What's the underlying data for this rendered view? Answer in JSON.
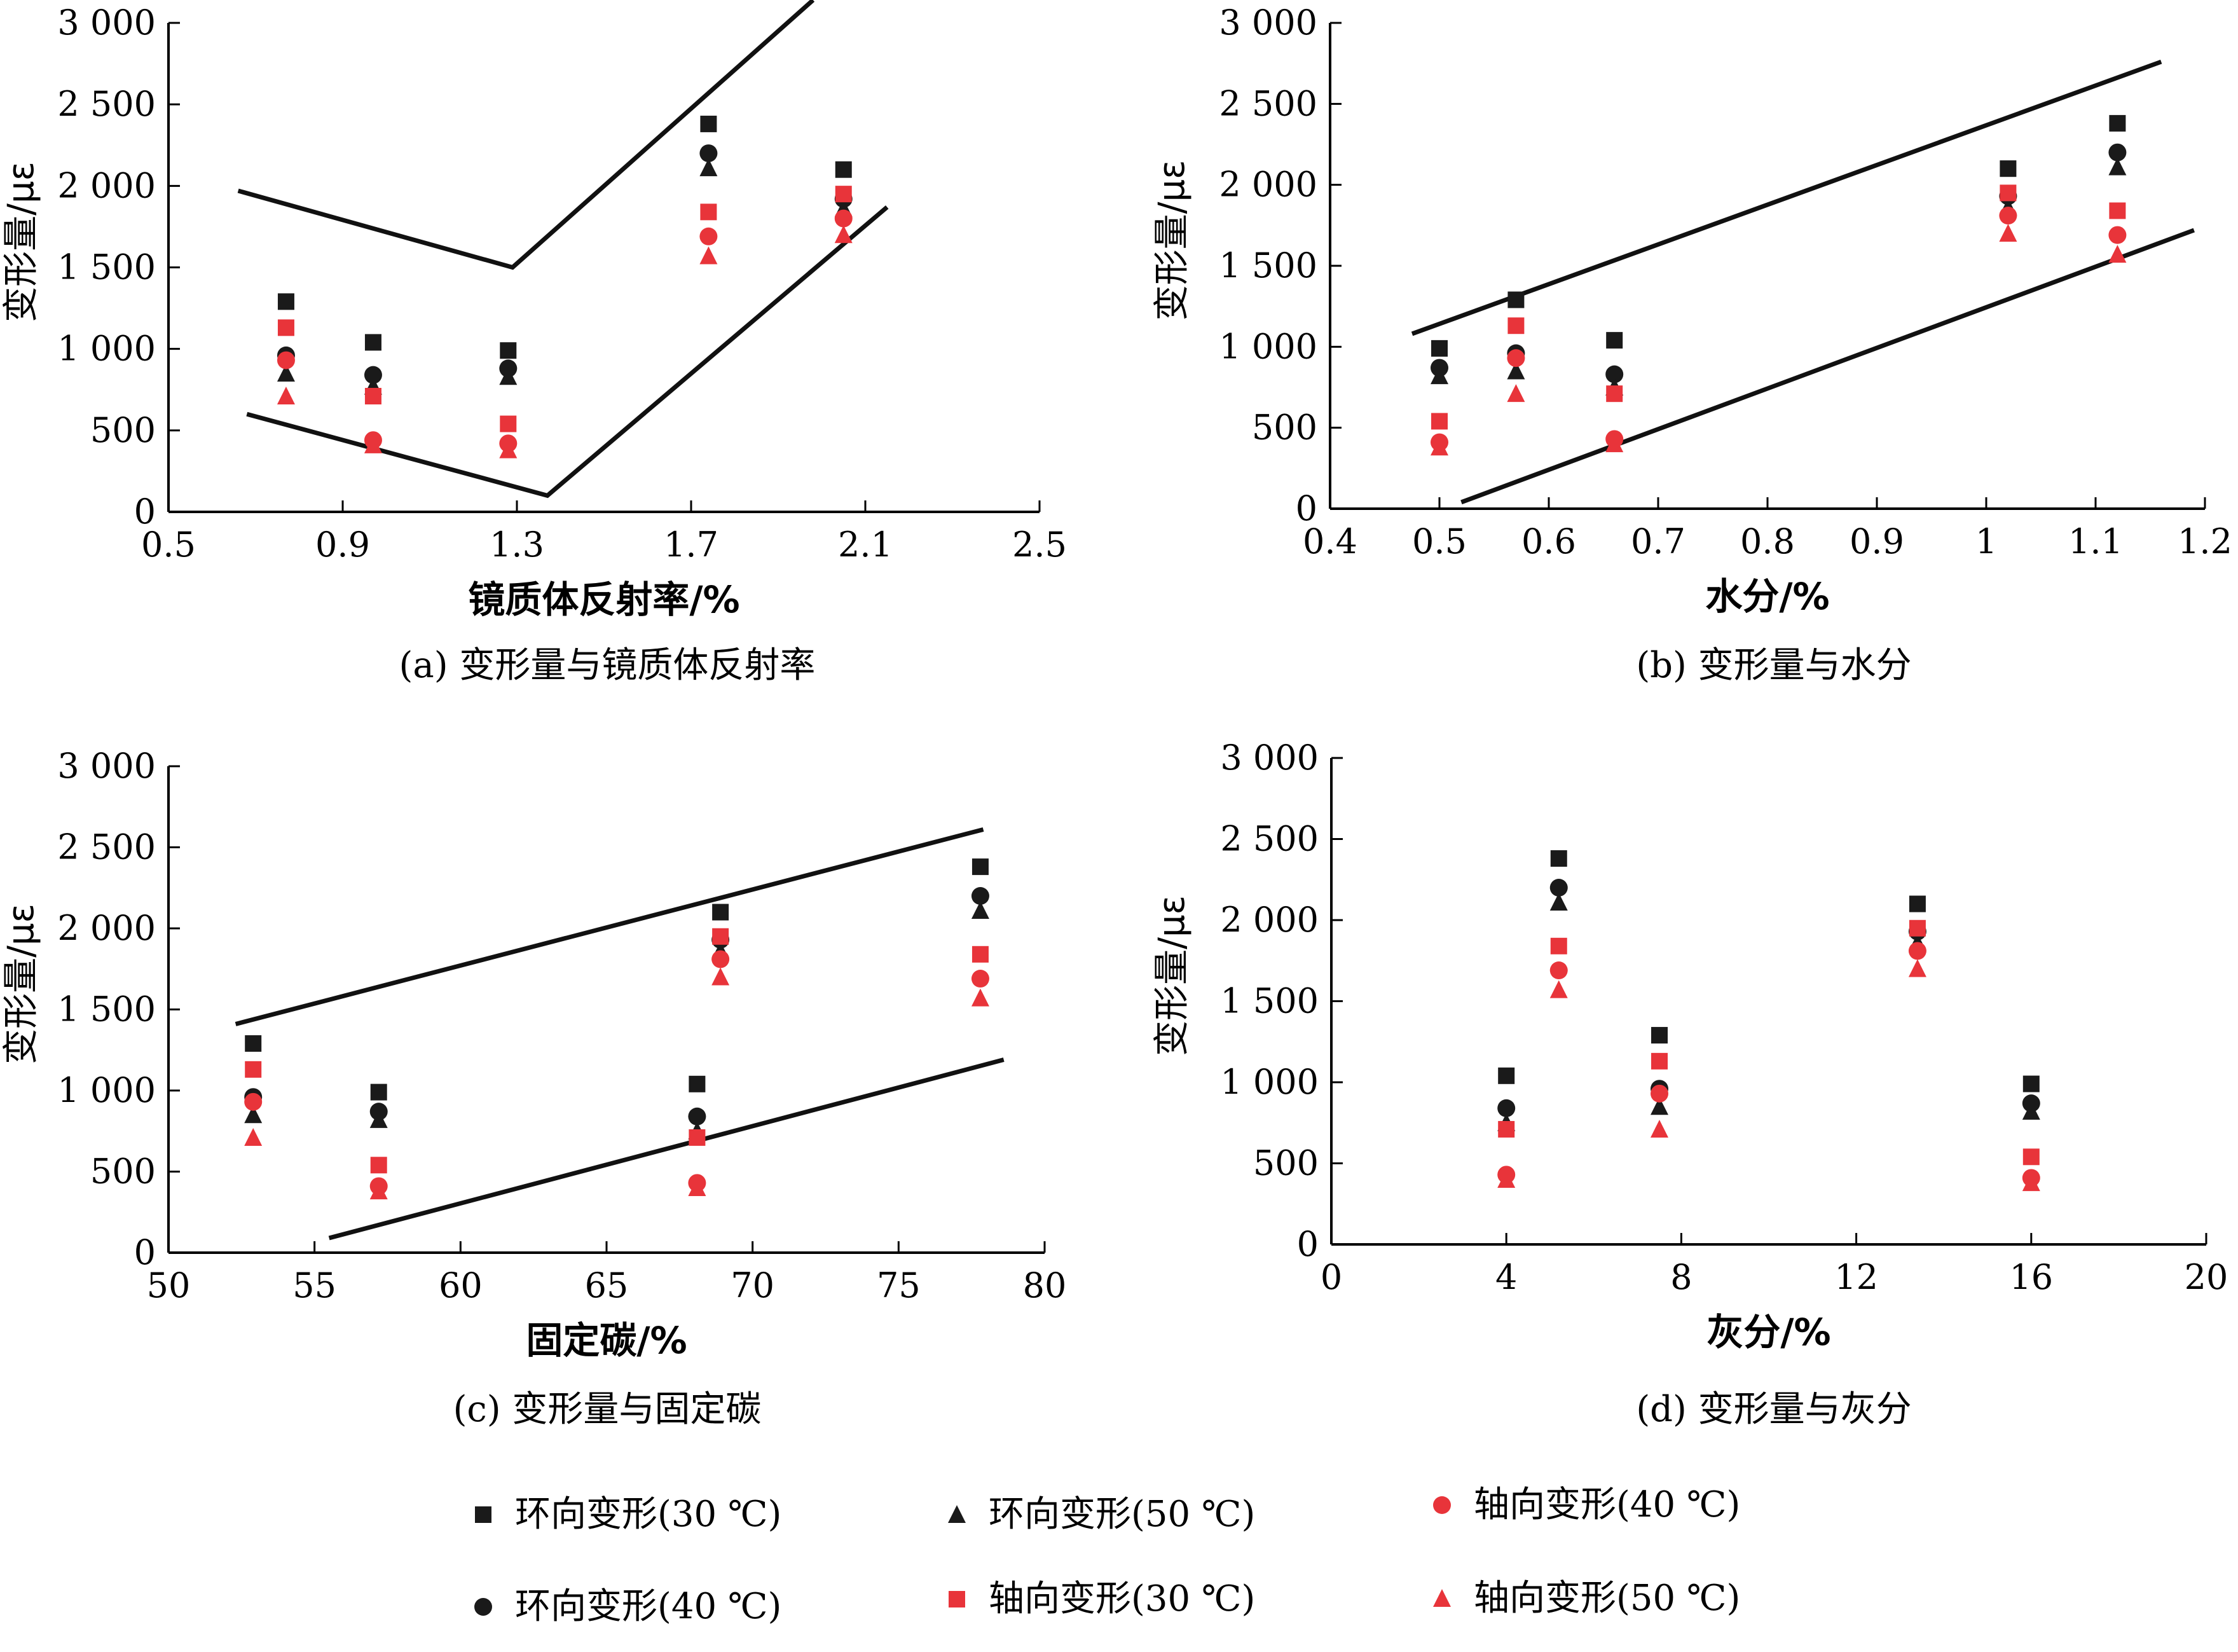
{
  "chart_data": [
    {
      "type": "scatter",
      "xlabel": "镜质体反射率/%",
      "ylabel": "变形量/με",
      "caption": "(a) 变形量与镜质体反射率",
      "xlim": [
        0.5,
        2.5
      ],
      "ylim": [
        0,
        3000
      ],
      "x_ticks": [
        "0.5",
        "0.9",
        "1.3",
        "1.7",
        "2.1",
        "2.5"
      ],
      "y_ticks": [
        "0",
        "500",
        "1 000",
        "1 500",
        "2 000",
        "2 500",
        "3 000"
      ],
      "series": [
        {
          "key": "h30",
          "points": [
            [
              0.77,
              1290
            ],
            [
              0.97,
              1040
            ],
            [
              1.28,
              990
            ],
            [
              1.74,
              2380
            ],
            [
              2.05,
              2100
            ]
          ]
        },
        {
          "key": "h40",
          "points": [
            [
              0.77,
              960
            ],
            [
              0.97,
              840
            ],
            [
              1.28,
              880
            ],
            [
              1.74,
              2200
            ],
            [
              2.05,
              1920
            ]
          ]
        },
        {
          "key": "h50",
          "points": [
            [
              0.77,
              850
            ],
            [
              0.97,
              770
            ],
            [
              1.28,
              830
            ],
            [
              1.74,
              2110
            ],
            [
              2.05,
              1860
            ]
          ]
        },
        {
          "key": "a30",
          "points": [
            [
              0.77,
              1130
            ],
            [
              0.97,
              710
            ],
            [
              1.28,
              540
            ],
            [
              1.74,
              1840
            ],
            [
              2.05,
              1950
            ]
          ]
        },
        {
          "key": "a40",
          "points": [
            [
              0.77,
              930
            ],
            [
              0.97,
              440
            ],
            [
              1.28,
              420
            ],
            [
              1.74,
              1690
            ],
            [
              2.05,
              1800
            ]
          ]
        },
        {
          "key": "a50",
          "points": [
            [
              0.77,
              710
            ],
            [
              0.97,
              410
            ],
            [
              1.28,
              380
            ],
            [
              1.74,
              1570
            ],
            [
              2.05,
              1700
            ]
          ]
        }
      ],
      "envelopes": [
        [
          [
            0.66,
            1970
          ],
          [
            1.29,
            1500
          ],
          [
            1.98,
            3140
          ]
        ],
        [
          [
            0.68,
            600
          ],
          [
            1.37,
            100
          ],
          [
            2.15,
            1870
          ]
        ]
      ]
    },
    {
      "type": "scatter",
      "xlabel": "水分/%",
      "ylabel": "变形量/με",
      "caption": "(b) 变形量与水分",
      "xlim": [
        0.4,
        1.2
      ],
      "ylim": [
        0,
        3000
      ],
      "x_ticks": [
        "0.4",
        "0.5",
        "0.6",
        "0.7",
        "0.8",
        "0.9",
        "1",
        "1.1",
        "1.2"
      ],
      "y_ticks": [
        "0",
        "500",
        "1 000",
        "1 500",
        "2 000",
        "2 500",
        "3 000"
      ],
      "series": [
        {
          "key": "h30",
          "points": [
            [
              0.5,
              990
            ],
            [
              0.57,
              1290
            ],
            [
              0.66,
              1040
            ],
            [
              1.02,
              2100
            ],
            [
              1.12,
              2380
            ]
          ]
        },
        {
          "key": "h40",
          "points": [
            [
              0.5,
              870
            ],
            [
              0.57,
              960
            ],
            [
              0.66,
              830
            ],
            [
              1.02,
              1930
            ],
            [
              1.12,
              2200
            ]
          ]
        },
        {
          "key": "h50",
          "points": [
            [
              0.5,
              820
            ],
            [
              0.57,
              850
            ],
            [
              0.66,
              750
            ],
            [
              1.02,
              1860
            ],
            [
              1.12,
              2110
            ]
          ]
        },
        {
          "key": "a30",
          "points": [
            [
              0.5,
              540
            ],
            [
              0.57,
              1130
            ],
            [
              0.66,
              710
            ],
            [
              1.02,
              1950
            ],
            [
              1.12,
              1840
            ]
          ]
        },
        {
          "key": "a40",
          "points": [
            [
              0.5,
              410
            ],
            [
              0.57,
              930
            ],
            [
              0.66,
              430
            ],
            [
              1.02,
              1810
            ],
            [
              1.12,
              1690
            ]
          ]
        },
        {
          "key": "a50",
          "points": [
            [
              0.5,
              380
            ],
            [
              0.57,
              710
            ],
            [
              0.66,
              400
            ],
            [
              1.02,
              1700
            ],
            [
              1.12,
              1570
            ]
          ]
        }
      ],
      "envelopes": [
        [
          [
            0.475,
            1080
          ],
          [
            1.16,
            2760
          ]
        ],
        [
          [
            0.52,
            40
          ],
          [
            1.19,
            1720
          ]
        ]
      ]
    },
    {
      "type": "scatter",
      "xlabel": "固定碳/%",
      "ylabel": "变形量/με",
      "caption": "(c) 变形量与固定碳",
      "xlim": [
        50,
        80
      ],
      "ylim": [
        0,
        3000
      ],
      "x_ticks": [
        "50",
        "55",
        "60",
        "65",
        "70",
        "75",
        "80"
      ],
      "y_ticks": [
        "0",
        "500",
        "1 000",
        "1 500",
        "2 000",
        "2 500",
        "3 000"
      ],
      "series": [
        {
          "key": "h30",
          "points": [
            [
              52.9,
              1290
            ],
            [
              57.2,
              990
            ],
            [
              68.1,
              1040
            ],
            [
              68.9,
              2100
            ],
            [
              77.8,
              2380
            ]
          ]
        },
        {
          "key": "h40",
          "points": [
            [
              52.9,
              960
            ],
            [
              57.2,
              870
            ],
            [
              68.1,
              840
            ],
            [
              68.9,
              1930
            ],
            [
              77.8,
              2200
            ]
          ]
        },
        {
          "key": "h50",
          "points": [
            [
              52.9,
              850
            ],
            [
              57.2,
              820
            ],
            [
              68.1,
              750
            ],
            [
              68.9,
              1860
            ],
            [
              77.8,
              2110
            ]
          ]
        },
        {
          "key": "a30",
          "points": [
            [
              52.9,
              1130
            ],
            [
              57.2,
              540
            ],
            [
              68.1,
              710
            ],
            [
              68.9,
              1950
            ],
            [
              77.8,
              1840
            ]
          ]
        },
        {
          "key": "a40",
          "points": [
            [
              52.9,
              930
            ],
            [
              57.2,
              410
            ],
            [
              68.1,
              430
            ],
            [
              68.9,
              1810
            ],
            [
              77.8,
              1690
            ]
          ]
        },
        {
          "key": "a50",
          "points": [
            [
              52.9,
              710
            ],
            [
              57.2,
              380
            ],
            [
              68.1,
              400
            ],
            [
              68.9,
              1700
            ],
            [
              77.8,
              1570
            ]
          ]
        }
      ],
      "envelopes": [
        [
          [
            52.3,
            1410
          ],
          [
            77.9,
            2610
          ]
        ],
        [
          [
            55.5,
            90
          ],
          [
            78.6,
            1190
          ]
        ]
      ]
    },
    {
      "type": "scatter",
      "xlabel": "灰分/%",
      "ylabel": "变形量/με",
      "caption": "(d) 变形量与灰分",
      "xlim": [
        0,
        20
      ],
      "ylim": [
        0,
        3000
      ],
      "x_ticks": [
        "0",
        "4",
        "8",
        "12",
        "16",
        "20"
      ],
      "y_ticks": [
        "0",
        "500",
        "1 000",
        "1 500",
        "2 000",
        "2 500",
        "3 000"
      ],
      "series": [
        {
          "key": "h30",
          "points": [
            [
              4.0,
              1040
            ],
            [
              5.2,
              2380
            ],
            [
              7.5,
              1290
            ],
            [
              13.4,
              2100
            ],
            [
              16.0,
              990
            ]
          ]
        },
        {
          "key": "h40",
          "points": [
            [
              4.0,
              840
            ],
            [
              5.2,
              2200
            ],
            [
              7.5,
              960
            ],
            [
              13.4,
              1930
            ],
            [
              16.0,
              870
            ]
          ]
        },
        {
          "key": "h50",
          "points": [
            [
              4.0,
              750
            ],
            [
              5.2,
              2110
            ],
            [
              7.5,
              850
            ],
            [
              13.4,
              1860
            ],
            [
              16.0,
              820
            ]
          ]
        },
        {
          "key": "a30",
          "points": [
            [
              4.0,
              710
            ],
            [
              5.2,
              1840
            ],
            [
              7.5,
              1130
            ],
            [
              13.4,
              1950
            ],
            [
              16.0,
              540
            ]
          ]
        },
        {
          "key": "a40",
          "points": [
            [
              4.0,
              430
            ],
            [
              5.2,
              1690
            ],
            [
              7.5,
              930
            ],
            [
              13.4,
              1810
            ],
            [
              16.0,
              410
            ]
          ]
        },
        {
          "key": "a50",
          "points": [
            [
              4.0,
              400
            ],
            [
              5.2,
              1570
            ],
            [
              7.5,
              710
            ],
            [
              13.4,
              1700
            ],
            [
              16.0,
              380
            ]
          ]
        }
      ],
      "envelopes": []
    }
  ],
  "legend": [
    {
      "key": "h30",
      "label": "环向变形(30 ℃)",
      "shape": "square",
      "color": "#1a1a1a"
    },
    {
      "key": "h50",
      "label": "环向变形(50 ℃)",
      "shape": "triangle",
      "color": "#1a1a1a"
    },
    {
      "key": "a40",
      "label": "轴向变形(40 ℃)",
      "shape": "circle",
      "color": "#e8343a"
    },
    {
      "key": "h40",
      "label": "环向变形(40 ℃)",
      "shape": "circle",
      "color": "#1a1a1a"
    },
    {
      "key": "a30",
      "label": "轴向变形(30 ℃)",
      "shape": "square",
      "color": "#e8343a"
    },
    {
      "key": "a50",
      "label": "轴向变形(50 ℃)",
      "shape": "triangle",
      "color": "#e8343a"
    }
  ]
}
